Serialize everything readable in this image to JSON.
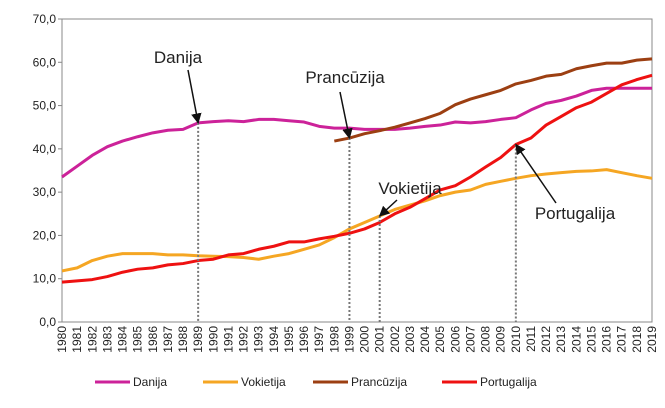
{
  "chart_data": {
    "type": "line",
    "categories": [
      "1980",
      "1981",
      "1982",
      "1983",
      "1984",
      "1985",
      "1986",
      "1987",
      "1988",
      "1989",
      "1990",
      "1991",
      "1992",
      "1993",
      "1994",
      "1995",
      "1996",
      "1997",
      "1998",
      "1999",
      "2000",
      "2001",
      "2002",
      "2003",
      "2004",
      "2005",
      "2006",
      "2007",
      "2008",
      "2009",
      "2010",
      "2011",
      "2012",
      "2013",
      "2014",
      "2015",
      "2016",
      "2017",
      "2018",
      "2019"
    ],
    "series": [
      {
        "name": "Danija",
        "color": "#cc2299",
        "values": [
          33.5,
          36,
          38.5,
          40.5,
          41.8,
          42.8,
          43.7,
          44.3,
          44.5,
          46,
          46.3,
          46.5,
          46.3,
          46.8,
          46.8,
          46.5,
          46.2,
          45.2,
          44.8,
          44.8,
          44.5,
          44.5,
          44.5,
          44.8,
          45.2,
          45.5,
          46.2,
          46,
          46.3,
          46.8,
          47.2,
          49,
          50.5,
          51.2,
          52.2,
          53.5,
          54,
          54,
          54,
          54
        ]
      },
      {
        "name": "Vokietija",
        "color": "#f5a623",
        "values": [
          11.8,
          12.5,
          14.2,
          15.2,
          15.8,
          15.8,
          15.8,
          15.5,
          15.5,
          15.3,
          15.2,
          15.1,
          14.9,
          14.5,
          15.2,
          15.8,
          16.8,
          17.8,
          19.5,
          21.5,
          23,
          24.5,
          26,
          27,
          28,
          29.2,
          30,
          30.5,
          31.8,
          32.5,
          33.2,
          33.8,
          34.2,
          34.5,
          34.8,
          34.9,
          35.2,
          34.5,
          33.8,
          33.2
        ]
      },
      {
        "name": "Prancūzija",
        "color": "#9c3f12",
        "values": [
          null,
          null,
          null,
          null,
          null,
          null,
          null,
          null,
          null,
          null,
          null,
          null,
          null,
          null,
          null,
          null,
          null,
          null,
          41.8,
          42.5,
          43.5,
          44.2,
          45,
          46,
          47,
          48.2,
          50.2,
          51.5,
          52.5,
          53.5,
          55,
          55.8,
          56.8,
          57.2,
          58.5,
          59.2,
          59.8,
          59.8,
          60.5,
          60.8
        ]
      },
      {
        "name": "Portugalija",
        "color": "#ee1111",
        "values": [
          9.2,
          9.5,
          9.8,
          10.5,
          11.5,
          12.2,
          12.5,
          13.2,
          13.5,
          14.2,
          14.5,
          15.5,
          15.8,
          16.8,
          17.5,
          18.5,
          18.5,
          19.2,
          19.8,
          20.5,
          21.5,
          23,
          25,
          26.5,
          28.5,
          30.5,
          31.5,
          33.5,
          35.8,
          38,
          41,
          42.5,
          45.5,
          47.5,
          49.5,
          50.8,
          52.8,
          54.8,
          56,
          57
        ]
      }
    ],
    "ylim": [
      0,
      70
    ],
    "yticks": [
      {
        "value": 0,
        "label": "0,0"
      },
      {
        "value": 10,
        "label": "10,0"
      },
      {
        "value": 20,
        "label": "20,0"
      },
      {
        "value": 30,
        "label": "30,0"
      },
      {
        "value": 40,
        "label": "40,0"
      },
      {
        "value": 50,
        "label": "50,0"
      },
      {
        "value": 60,
        "label": "60,0"
      },
      {
        "value": 70,
        "label": "70,0"
      }
    ],
    "annotations": [
      "Danija",
      "Prancūzija",
      "Vokietija",
      "Portugalija"
    ],
    "legend": "bottom"
  }
}
